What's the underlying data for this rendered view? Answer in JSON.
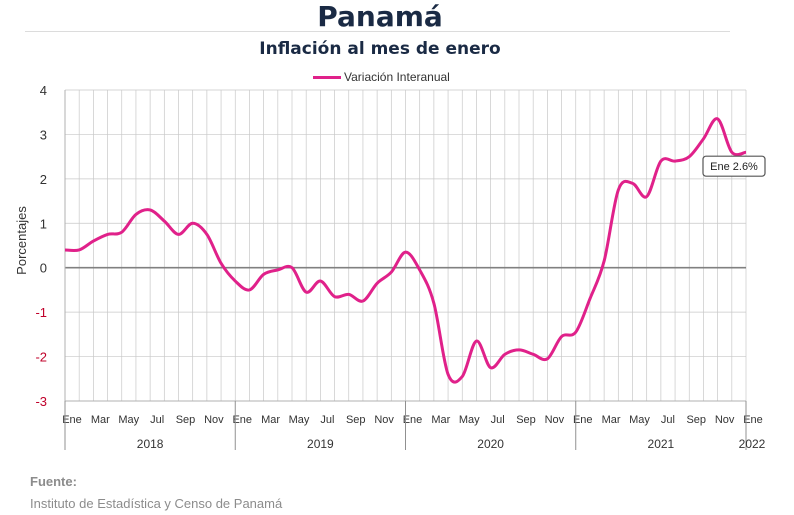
{
  "header": {
    "title": "Panamá",
    "subtitle": "Inflación al mes de enero"
  },
  "footer": {
    "source_label": "Fuente:",
    "source_text": "Instituto de Estadística y Censo de Panamá"
  },
  "colors": {
    "series": "#e0218a",
    "title": "#1a2a44",
    "grid": "#c8c8c8",
    "zero_line": "#808080",
    "negative_tick": "#c0002a"
  },
  "chart_data": {
    "type": "line",
    "title": "Inflación al mes de enero",
    "ylabel": "Porcentajes",
    "xlabel": "",
    "ylim": [
      -3,
      4
    ],
    "yticks": [
      "4",
      "3",
      "2",
      "1",
      "0",
      "-1",
      "-2",
      "-3"
    ],
    "grid": true,
    "legend": "top-center",
    "month_labels": [
      "Ene",
      "Mar",
      "May",
      "Jul",
      "Sep",
      "Nov",
      "Ene",
      "Mar",
      "May",
      "Jul",
      "Sep",
      "Nov",
      "Ene",
      "Mar",
      "May",
      "Jul",
      "Sep",
      "Nov",
      "Ene",
      "Mar",
      "May",
      "Jul",
      "Sep",
      "Nov",
      "Ene"
    ],
    "year_labels": [
      "2018",
      "2019",
      "2020",
      "2021",
      "2022"
    ],
    "x": [
      "2018-01",
      "2018-02",
      "2018-03",
      "2018-04",
      "2018-05",
      "2018-06",
      "2018-07",
      "2018-08",
      "2018-09",
      "2018-10",
      "2018-11",
      "2018-12",
      "2019-01",
      "2019-02",
      "2019-03",
      "2019-04",
      "2019-05",
      "2019-06",
      "2019-07",
      "2019-08",
      "2019-09",
      "2019-10",
      "2019-11",
      "2019-12",
      "2020-01",
      "2020-02",
      "2020-03",
      "2020-04",
      "2020-05",
      "2020-06",
      "2020-07",
      "2020-08",
      "2020-09",
      "2020-10",
      "2020-11",
      "2020-12",
      "2021-01",
      "2021-02",
      "2021-03",
      "2021-04",
      "2021-05",
      "2021-06",
      "2021-07",
      "2021-08",
      "2021-09",
      "2021-10",
      "2021-11",
      "2021-12",
      "2022-01"
    ],
    "series": [
      {
        "name": "Variación Interanual",
        "values": [
          0.4,
          0.4,
          0.6,
          0.75,
          0.8,
          1.2,
          1.3,
          1.05,
          0.75,
          1.0,
          0.75,
          0.1,
          -0.3,
          -0.5,
          -0.15,
          -0.05,
          0.0,
          -0.55,
          -0.3,
          -0.65,
          -0.6,
          -0.75,
          -0.35,
          -0.1,
          0.35,
          -0.05,
          -0.8,
          -2.4,
          -2.45,
          -1.65,
          -2.25,
          -1.95,
          -1.85,
          -1.95,
          -2.05,
          -1.55,
          -1.45,
          -0.7,
          0.15,
          1.75,
          1.9,
          1.6,
          2.4,
          2.4,
          2.5,
          2.9,
          3.35,
          2.6,
          2.6
        ]
      }
    ],
    "annotation": {
      "text": "Ene 2.6%"
    }
  }
}
